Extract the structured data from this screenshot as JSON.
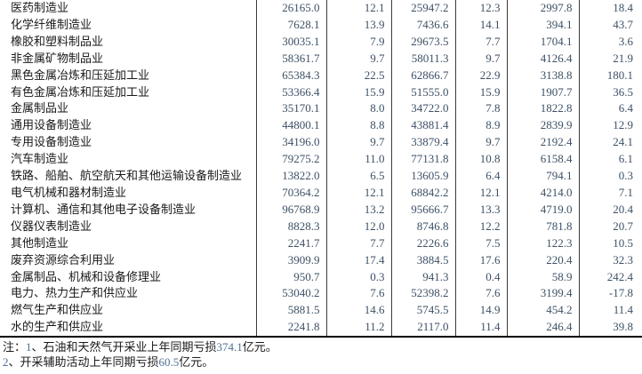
{
  "colors": {
    "background": "#ffffff",
    "label_text": "#1a1a1a",
    "number_text": "#3d5166",
    "note_number_text": "#4d7194",
    "grid_line": "#3a3a3a",
    "bottom_border": "#000000"
  },
  "table": {
    "rows": [
      {
        "name": "医药制造业",
        "values": [
          "26165.0",
          "12.1",
          "25947.2",
          "12.3",
          "2997.8",
          "18.4"
        ]
      },
      {
        "name": "化学纤维制造业",
        "values": [
          "7628.1",
          "13.9",
          "7436.6",
          "14.1",
          "394.1",
          "43.7"
        ]
      },
      {
        "name": "橡胶和塑料制品业",
        "values": [
          "30035.1",
          "7.9",
          "29673.5",
          "7.7",
          "1704.1",
          "3.6"
        ]
      },
      {
        "name": "非金属矿物制品业",
        "values": [
          "58361.7",
          "9.7",
          "58011.3",
          "9.7",
          "4126.4",
          "21.9"
        ]
      },
      {
        "name": "黑色金属冶炼和压延加工业",
        "values": [
          "65384.3",
          "22.5",
          "62866.7",
          "22.9",
          "3138.8",
          "180.1"
        ]
      },
      {
        "name": "有色金属冶炼和压延加工业",
        "values": [
          "53366.4",
          "15.9",
          "51555.0",
          "15.9",
          "1907.7",
          "36.5"
        ]
      },
      {
        "name": "金属制品业",
        "values": [
          "35170.1",
          "8.0",
          "34722.0",
          "7.8",
          "1822.8",
          "6.4"
        ]
      },
      {
        "name": "通用设备制造业",
        "values": [
          "44800.1",
          "8.8",
          "43881.4",
          "8.9",
          "2839.9",
          "12.9"
        ]
      },
      {
        "name": "专用设备制造业",
        "values": [
          "34196.0",
          "9.7",
          "33879.4",
          "9.7",
          "2192.4",
          "24.1"
        ]
      },
      {
        "name": "汽车制造业",
        "values": [
          "79275.2",
          "11.0",
          "77131.8",
          "10.8",
          "6158.4",
          "6.1"
        ]
      },
      {
        "name": "铁路、船舶、航空航天和其他运输设备制造业",
        "values": [
          "13822.0",
          "6.5",
          "13605.9",
          "6.4",
          "794.1",
          "0.3"
        ]
      },
      {
        "name": "电气机械和器材制造业",
        "values": [
          "70364.2",
          "12.1",
          "68842.2",
          "12.1",
          "4214.0",
          "7.1"
        ]
      },
      {
        "name": "计算机、通信和其他电子设备制造业",
        "values": [
          "96768.9",
          "13.2",
          "95666.7",
          "13.3",
          "4719.0",
          "20.4"
        ]
      },
      {
        "name": "仪器仪表制造业",
        "values": [
          "8828.3",
          "12.0",
          "8746.8",
          "12.2",
          "781.8",
          "20.7"
        ]
      },
      {
        "name": "其他制造业",
        "values": [
          "2241.7",
          "7.7",
          "2226.6",
          "7.5",
          "122.3",
          "10.5"
        ]
      },
      {
        "name": "废弃资源综合利用业",
        "values": [
          "3909.9",
          "17.4",
          "3884.5",
          "17.6",
          "220.4",
          "32.3"
        ]
      },
      {
        "name": "金属制品、机械和设备修理业",
        "values": [
          "950.7",
          "0.3",
          "941.3",
          "0.4",
          "58.9",
          "242.4"
        ]
      },
      {
        "name": "电力、热力生产和供应业",
        "values": [
          "53040.2",
          "7.6",
          "52398.2",
          "7.6",
          "3199.4",
          "-17.8"
        ]
      },
      {
        "name": "燃气生产和供应业",
        "values": [
          "5881.5",
          "14.6",
          "5745.5",
          "14.9",
          "454.2",
          "11.4"
        ]
      },
      {
        "name": "水的生产和供应业",
        "values": [
          "2241.8",
          "11.2",
          "2117.0",
          "11.4",
          "246.4",
          "39.8"
        ]
      }
    ]
  },
  "notes": [
    [
      {
        "t": "注：",
        "n": false
      },
      {
        "t": "1",
        "n": true
      },
      {
        "t": "、石油和天然气开采业上年同期亏损",
        "n": false
      },
      {
        "t": "374.1",
        "n": true
      },
      {
        "t": "亿元。",
        "n": false
      }
    ],
    [
      {
        "t": "2",
        "n": true
      },
      {
        "t": "、开采辅助活动上年同期亏损",
        "n": false
      },
      {
        "t": "60.5",
        "n": true
      },
      {
        "t": "亿元。",
        "n": false
      }
    ]
  ]
}
